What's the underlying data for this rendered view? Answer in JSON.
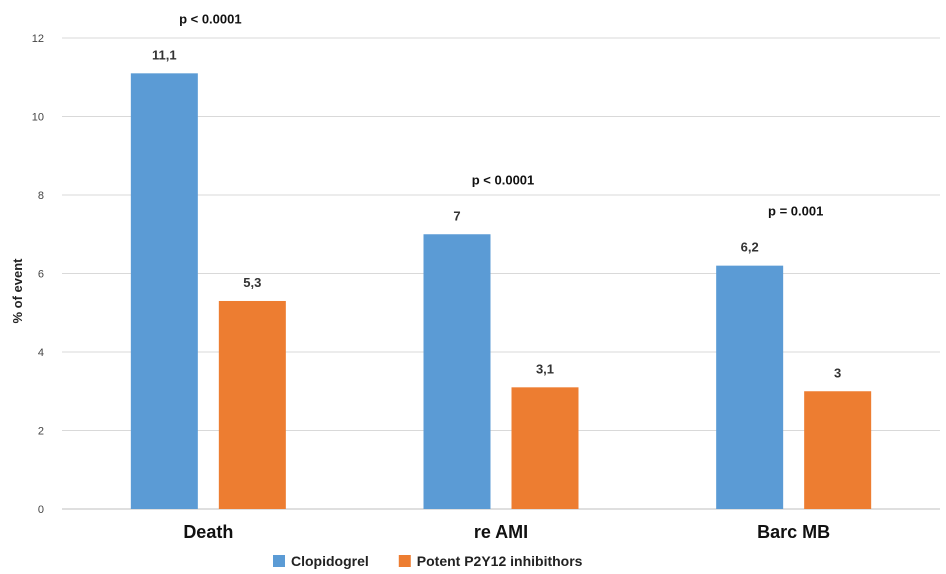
{
  "chart_data": {
    "type": "bar",
    "categories": [
      "Death",
      "re AMI",
      "Barc MB"
    ],
    "series": [
      {
        "name": "Clopidogrel",
        "values": [
          11.1,
          7,
          6.2
        ],
        "labels": [
          "11,1",
          "7",
          "6,2"
        ],
        "color": "#5B9BD5"
      },
      {
        "name": "Potent P2Y12 inhibithors",
        "values": [
          5.3,
          3.1,
          3
        ],
        "labels": [
          "5,3",
          "3,1",
          "3"
        ],
        "color": "#ED7D31"
      }
    ],
    "annotations": [
      "p < 0.0001",
      "p < 0.0001",
      "p = 0.001"
    ],
    "ylabel": "% of event",
    "ylim": [
      0,
      12
    ],
    "yticks": [
      0,
      2,
      4,
      6,
      8,
      10,
      12
    ],
    "grid": true,
    "legend": "bottom"
  }
}
